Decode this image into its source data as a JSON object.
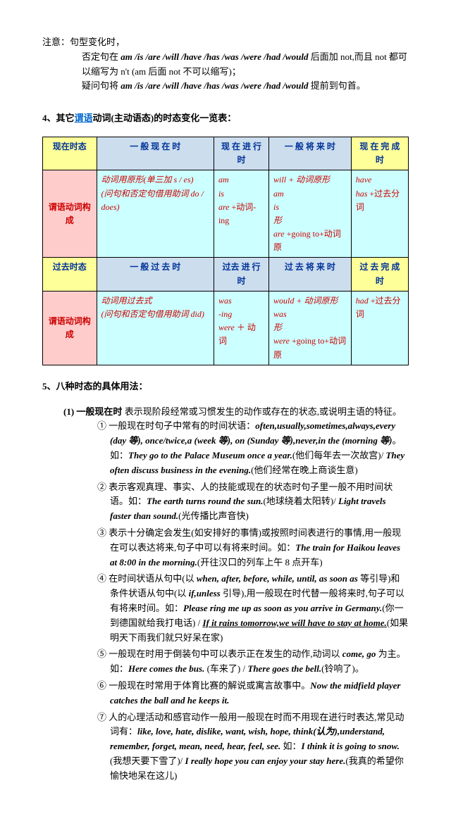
{
  "note": {
    "label": "注意：",
    "line1": "句型变化时，",
    "line2_pre": "否定句在 ",
    "line2_aux": "am /is /are /will /have /has /was /were /had /would",
    "line2_post": " 后面加 not,而且 not 都可以缩写为 n't (am 后面 not 不可以缩写)；",
    "line3_pre": "疑问句将 ",
    "line3_aux": "am /is /are /will /have /has /was /were /had /would",
    "line3_post": " 提前到句首。"
  },
  "section4": {
    "title_pre": "4、其它",
    "title_link": "谓语",
    "title_post": "动词(主动语态)的时态变化一览表："
  },
  "table": {
    "colors": {
      "header_yellow": "#ffff99",
      "header_blue": "#ccddee",
      "row_label_pink": "#ffcccc",
      "cell_cyan": "#ccffff",
      "border": "#000000",
      "red_text": "#cc0000",
      "blue_text": "#003399"
    },
    "headers": {
      "r1c1": "现在时态",
      "r1c2": "一 般 现 在 时",
      "r1c3": "现 在 进 行 时",
      "r1c4": "一 般 将 来 时",
      "r1c5": "现 在 完 成 时",
      "r3c1": "过去时态",
      "r3c2": "一 般 过 去 时",
      "r3c3": "过去 进 行 时",
      "r3c4": "过 去 将 来 时",
      "r3c5": "过 去 完 成 时"
    },
    "row_labels": {
      "r2": "谓语动词构成",
      "r4": "谓语动词构成"
    },
    "cells": {
      "r2c2": "动词用原形(单三加 s / es)\n(问句和否定句借用助词 do / does)",
      "r2c3_a": "am\nis\nare",
      "r2c3_b": "+动词-ing",
      "r2c4_a": "will + 动词原形",
      "r2c4_b": "am\nis\n形\nare",
      "r2c4_c": "+going to+动词原",
      "r2c5_a": "have\nhas",
      "r2c5_b": "+过去分词",
      "r4c2": "动词用过去式\n(问句和否定句借用助词 did)",
      "r4c3_a": "was\n-ing\nwere",
      "r4c3_b": "＋ 动  词",
      "r4c4_a": "would + 动词原形",
      "r4c4_b": "was\n形\nwere",
      "r4c4_c": "+going to+动词原",
      "r4c5_a": "had",
      "r4c5_b": "+过去分词"
    }
  },
  "section5": {
    "title": "5、八种时态的具体用法：",
    "item1": {
      "num": "(1)",
      "name": "一般现在时",
      "desc": " 表示现阶段经常或习惯发生的动作或存在的状态,或说明主语的特征。",
      "sub": {
        "s1_pre": "① 一般现在时句子中常有的时间状语：",
        "s1_it": "often,usually,sometimes,always,every (day 等),        once/twice,a (week 等), on (Sunday 等),never,in the (morning 等)",
        "s1_mid": "。如：",
        "s1_ex": "They go to the Palace Museum once a year.",
        "s1_tr": "(他们每年去一次故宫)/ ",
        "s1_ex2": "They often discuss business in the evening.",
        "s1_tr2": "(他们经常在晚上商谈生意)",
        "s2_pre": "② 表示客观真理、事实、人的技能或现在的状态时句子里一般不用时间状语。如：",
        "s2_ex": "The earth turns round the sun.",
        "s2_tr": "(地球绕着太阳转)/ ",
        "s2_ex2": "Light travels faster than sound.",
        "s2_tr2": "(光传播比声音快)",
        "s3_pre": "③ 表示十分确定会发生(如安排好的事情)或按照时间表进行的事情,用一般现在可以表达将来,句子中可以有将来时间。如：",
        "s3_ex": "The train for Haikou leaves at 8:00 in the morning.",
        "s3_tr": "(开往汉口的列车上午 8 点开车)",
        "s4_pre": "④ 在时间状语从句中(以 ",
        "s4_it1": "when, after, before, while, until, as soon as",
        "s4_mid1": " 等引导)和条件状语从句中(以 ",
        "s4_it2": "if,unless",
        "s4_mid2": " 引导),用一般现在时代替一般将来时,句子可以有将来时间。如：",
        "s4_ex": "Please ring me up as soon as you arrive in Germany.",
        "s4_tr": "(你一到德国就给我打电话) / ",
        "s4_ex2": "If it rains tomorrow,we will have to stay at home.",
        "s4_tr2": "(如果明天下雨我们就只好呆在家)",
        "s5_pre": "⑤ 一般现在时用于倒装句中可以表示正在发生的动作,动词以 ",
        "s5_it": "come, go",
        "s5_mid": " 为主。如：",
        "s5_ex": "Here comes the bus.",
        "s5_tr": " (车来了) / ",
        "s5_ex2": "There goes the bell.",
        "s5_tr2": "(铃响了)。",
        "s6_pre": "⑥ 一般现在时常用于体育比赛的解说或寓言故事中。",
        "s6_ex": "Now the midfield player catches the ball and he keeps it.",
        "s7_pre": "⑦ 人的心理活动和感官动作一般用一般现在时而不用现在进行时表达,常见动词有：",
        "s7_it": "like, love, hate, dislike, want, wish, hope, think(认为),understand, remember, forget, mean, need, hear, feel, see.",
        "s7_mid": " 如：",
        "s7_ex": "I think it is going to snow.",
        "s7_tr": "(我想天要下雪了)/ ",
        "s7_ex2": "I really hope you can enjoy your stay here.",
        "s7_tr2": "(我真的希望你愉快地呆在这儿)"
      }
    }
  }
}
